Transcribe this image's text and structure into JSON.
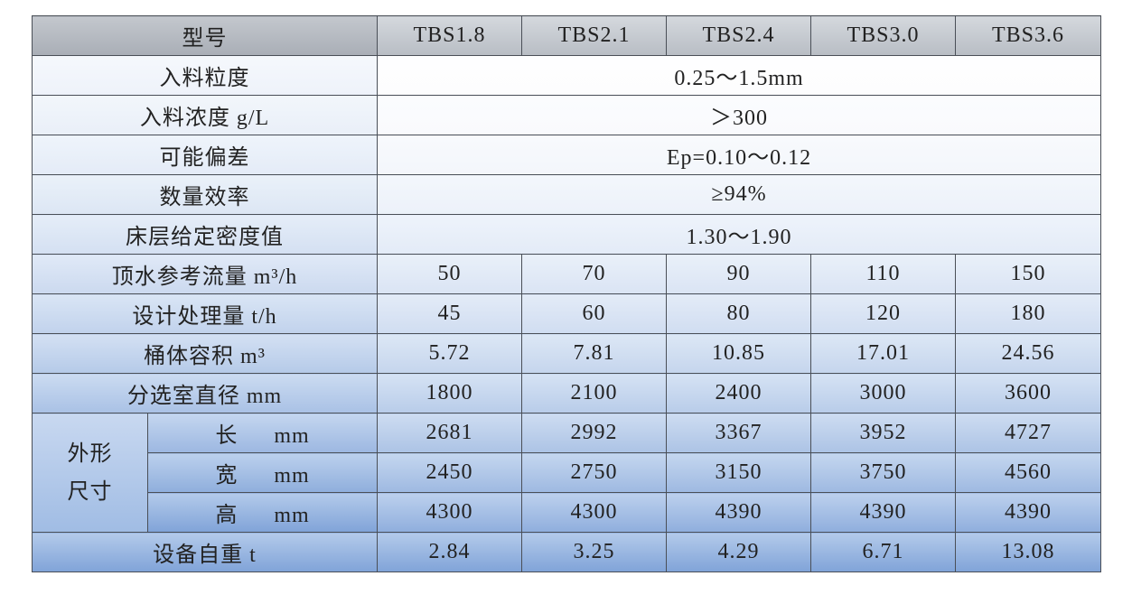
{
  "table": {
    "header": [
      "型号",
      "TBS1.8",
      "TBS2.1",
      "TBS2.4",
      "TBS3.0",
      "TBS3.6"
    ],
    "spanned_rows": [
      {
        "label": "入料粒度",
        "value": "0.25～1.5mm"
      },
      {
        "label": "入料浓度 g/L",
        "value": "＞300"
      },
      {
        "label": "可能偏差",
        "value": "Ep=0.10～0.12"
      },
      {
        "label": "数量效率",
        "value": "≥94%"
      },
      {
        "label": "床层给定密度值",
        "value": "1.30～1.90"
      }
    ],
    "rows": [
      {
        "label": "顶水参考流量 m³/h",
        "values": [
          "50",
          "70",
          "90",
          "110",
          "150"
        ]
      },
      {
        "label": "设计处理量 t/h",
        "values": [
          "45",
          "60",
          "80",
          "120",
          "180"
        ]
      },
      {
        "label": "桶体容积 m³",
        "values": [
          "5.72",
          "7.81",
          "10.85",
          "17.01",
          "24.56"
        ]
      },
      {
        "label": "分选室直径 mm",
        "values": [
          "1800",
          "2100",
          "2400",
          "3000",
          "3600"
        ]
      }
    ],
    "group": {
      "label": [
        "外形",
        "尺寸"
      ],
      "rows": [
        {
          "label": "长",
          "unit": "mm",
          "values": [
            "2681",
            "2992",
            "3367",
            "3952",
            "4727"
          ]
        },
        {
          "label": "宽",
          "unit": "mm",
          "values": [
            "2450",
            "2750",
            "3150",
            "3750",
            "4560"
          ]
        },
        {
          "label": "高",
          "unit": "mm",
          "values": [
            "4300",
            "4300",
            "4390",
            "4390",
            "4390"
          ]
        }
      ]
    },
    "footer": {
      "label": "设备自重 t",
      "values": [
        "2.84",
        "3.25",
        "4.29",
        "6.71",
        "13.08"
      ]
    }
  }
}
